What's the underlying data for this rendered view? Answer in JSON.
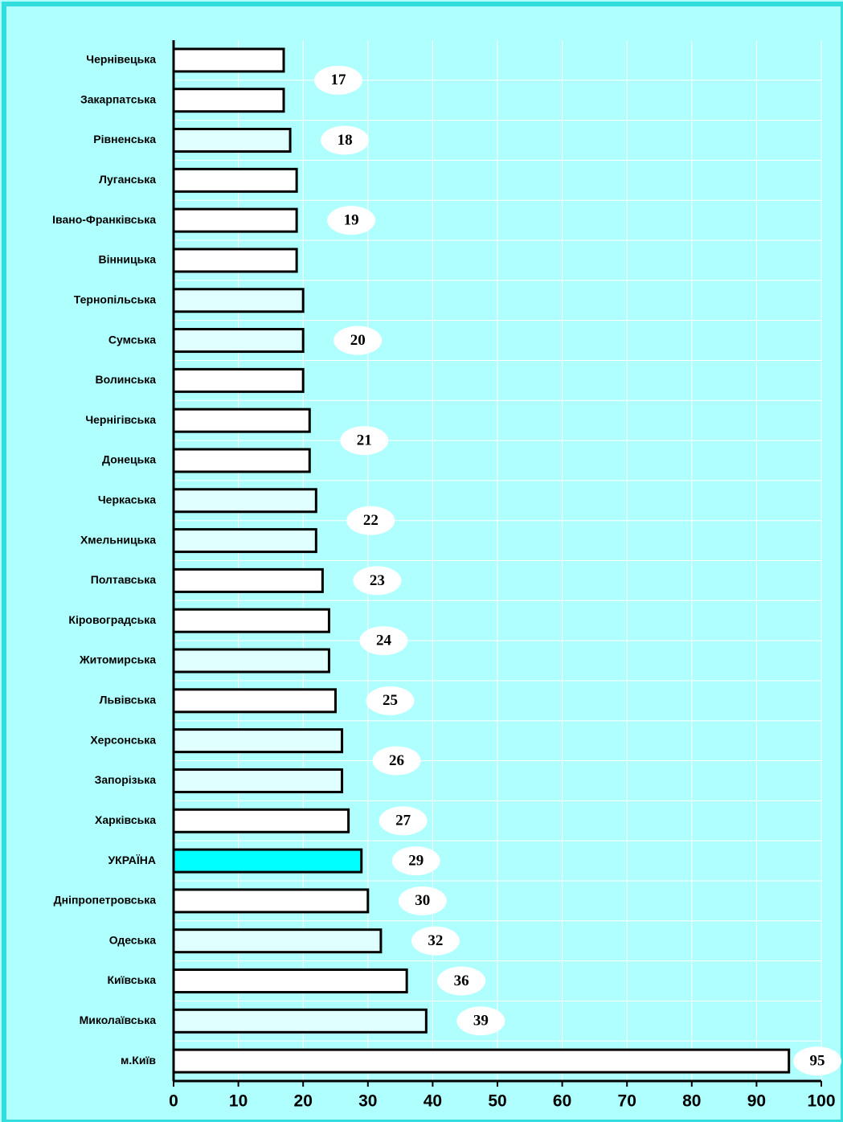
{
  "chart_data": {
    "type": "hbar",
    "categories": [
      "Чернівецька",
      "Закарпатська",
      "Рівненська",
      "Луганська",
      "Івано-Франківська",
      "Вінницька",
      "Тернопільська",
      "Сумська",
      "Волинська",
      "Чернігівська",
      "Донецька",
      "Черкаська",
      "Хмельницька",
      "Полтавська",
      "Кіровоградська",
      "Житомирська",
      "Львівська",
      "Херсонська",
      "Запорізька",
      "Харківська",
      "УКРАЇНА",
      "Дніпропетровська",
      "Одеська",
      "Київська",
      "Миколаївська",
      "м.Київ"
    ],
    "values": [
      17,
      17,
      18,
      19,
      19,
      19,
      20,
      20,
      20,
      21,
      21,
      22,
      22,
      23,
      24,
      24,
      25,
      26,
      26,
      27,
      29,
      30,
      32,
      36,
      39,
      95
    ],
    "value_labels": [
      "17",
      null,
      "18",
      "19",
      null,
      null,
      "20",
      null,
      null,
      "21",
      null,
      "22",
      null,
      "23",
      "24",
      null,
      "25",
      "26",
      null,
      "27",
      "29",
      "30",
      "32",
      "36",
      "39",
      "95"
    ],
    "colors": [
      "#ffffff",
      "#ffffff",
      "#e0ffff",
      "#ffffff",
      "#ffffff",
      "#ffffff",
      "#e0ffff",
      "#e0ffff",
      "#ffffff",
      "#ffffff",
      "#ffffff",
      "#e0ffff",
      "#e0ffff",
      "#ffffff",
      "#ffffff",
      "#e0ffff",
      "#ffffff",
      "#e0ffff",
      "#e0ffff",
      "#ffffff",
      "#00ffff",
      "#ffffff",
      "#e0ffff",
      "#ffffff",
      "#e0ffff",
      "#ffffff"
    ],
    "xlim": [
      0,
      100
    ],
    "xticks": [
      0,
      10,
      20,
      30,
      40,
      50,
      60,
      70,
      80,
      90,
      100
    ],
    "grid": true
  }
}
